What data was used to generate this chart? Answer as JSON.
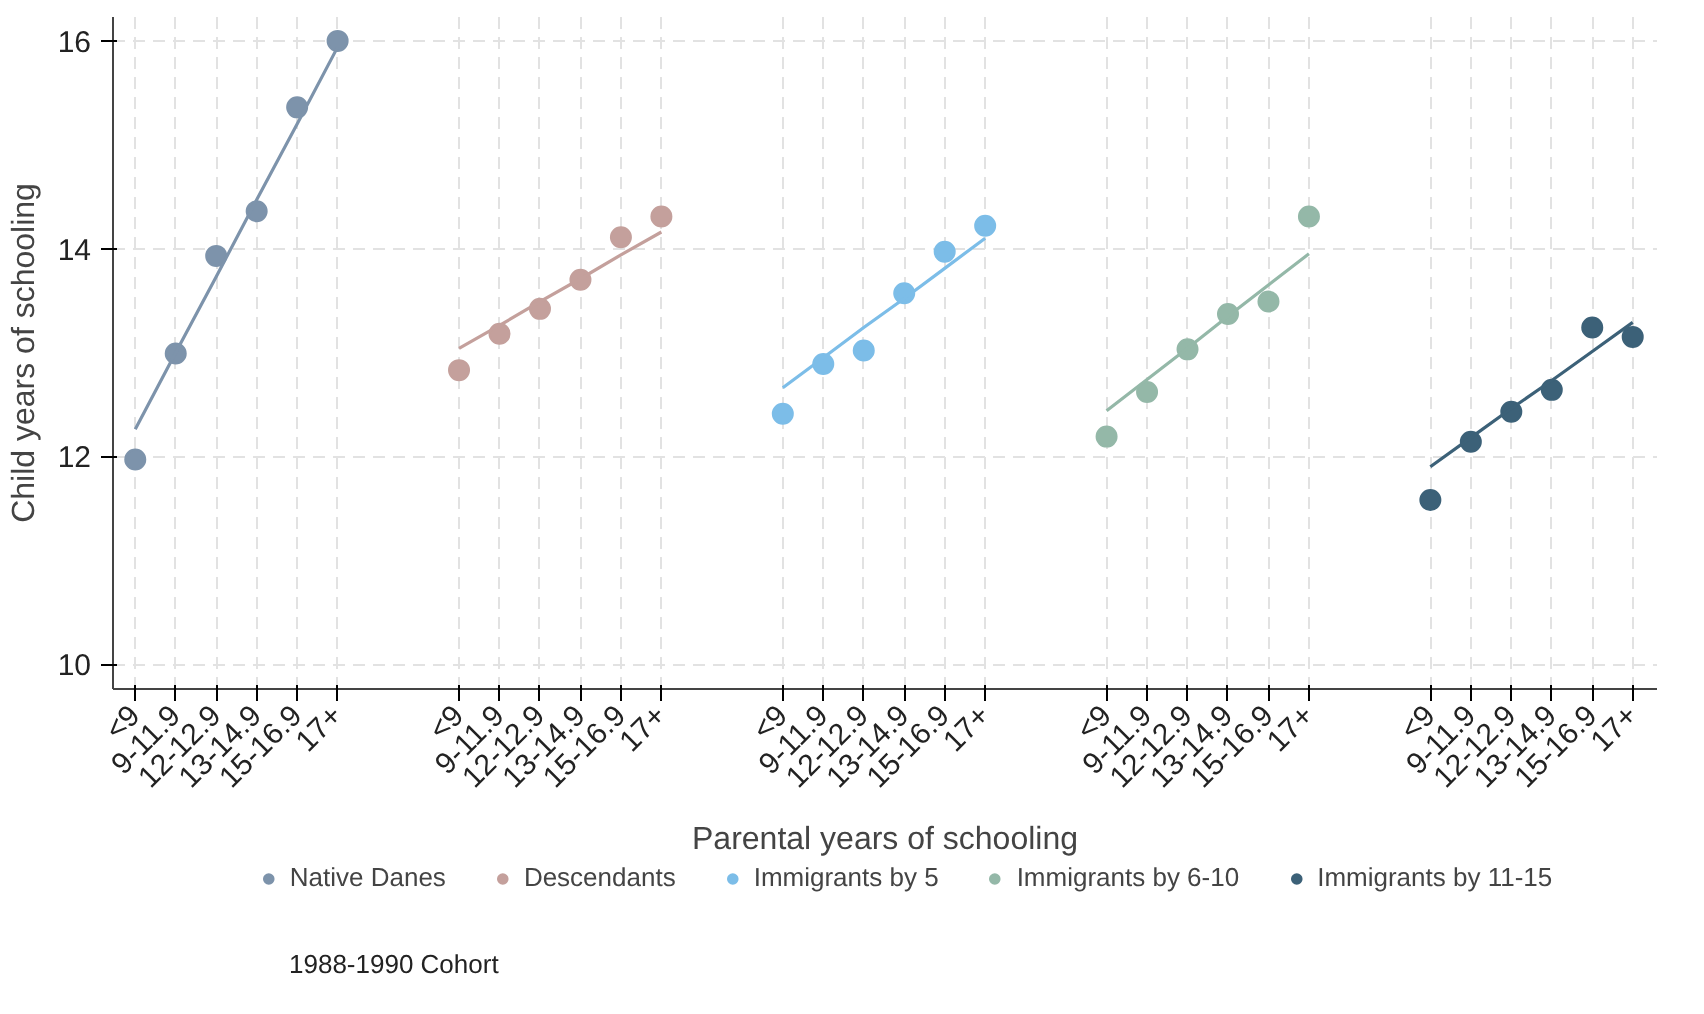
{
  "chart_data": {
    "type": "scatter",
    "xlabel": "Parental years of schooling",
    "ylabel": "Child years of schooling",
    "categories": [
      "<9",
      "9-11.9",
      "12-12.9",
      "13-14.9",
      "15-16.9",
      "17+",
      null,
      null,
      "<9",
      "9-11.9",
      "12-12.9",
      "13-14.9",
      "15-16.9",
      "17+",
      null,
      null,
      "<9",
      "9-11.9",
      "12-12.9",
      "13-14.9",
      "15-16.9",
      "17+",
      null,
      null,
      "<9",
      "9-11.9",
      "12-12.9",
      "13-14.9",
      "15-16.9",
      "17+",
      null,
      null,
      "<9",
      "9-11.9",
      "12-12.9",
      "13-14.9",
      "15-16.9",
      "17+"
    ],
    "series": [
      {
        "name": "Native Danes",
        "color": "#7d93ab",
        "values": [
          11.97,
          12.99,
          13.93,
          14.36,
          15.36,
          16.0,
          null,
          null,
          null,
          null,
          null,
          null,
          null,
          null,
          null,
          null,
          null,
          null,
          null,
          null,
          null,
          null,
          null,
          null,
          null,
          null,
          null,
          null,
          null,
          null,
          null,
          null,
          null,
          null,
          null,
          null,
          null,
          null
        ]
      },
      {
        "name": "Descendants",
        "color": "#c4a09c",
        "values": [
          null,
          null,
          null,
          null,
          null,
          null,
          null,
          null,
          12.83,
          13.18,
          13.42,
          13.7,
          14.11,
          14.31,
          null,
          null,
          null,
          null,
          null,
          null,
          null,
          null,
          null,
          null,
          null,
          null,
          null,
          null,
          null,
          null,
          null,
          null,
          null,
          null,
          null,
          null,
          null,
          null
        ]
      },
      {
        "name": "Immigrants by 5",
        "color": "#7cbde8",
        "values": [
          null,
          null,
          null,
          null,
          null,
          null,
          null,
          null,
          null,
          null,
          null,
          null,
          null,
          null,
          null,
          null,
          12.41,
          12.89,
          13.02,
          13.57,
          13.97,
          14.22,
          null,
          null,
          null,
          null,
          null,
          null,
          null,
          null,
          null,
          null,
          null,
          null,
          null,
          null,
          null,
          null
        ]
      },
      {
        "name": "Immigrants by 6-10",
        "color": "#94b8a8",
        "values": [
          null,
          null,
          null,
          null,
          null,
          null,
          null,
          null,
          null,
          null,
          null,
          null,
          null,
          null,
          null,
          null,
          null,
          null,
          null,
          null,
          null,
          null,
          null,
          null,
          12.19,
          12.62,
          13.03,
          13.37,
          13.49,
          14.31,
          null,
          null,
          null,
          null,
          null,
          null,
          null,
          null
        ]
      },
      {
        "name": "Immigrants by 11-15",
        "color": "#3c6178",
        "values": [
          null,
          null,
          null,
          null,
          null,
          null,
          null,
          null,
          null,
          null,
          null,
          null,
          null,
          null,
          null,
          null,
          null,
          null,
          null,
          null,
          null,
          null,
          null,
          null,
          null,
          null,
          null,
          null,
          null,
          null,
          null,
          null,
          11.58,
          12.14,
          12.43,
          12.64,
          13.24,
          13.15
        ]
      },
      {
        "type": "line",
        "marker": "none",
        "color": "#7d93ab",
        "values": [
          12.26,
          13.0,
          13.73,
          14.47,
          15.2,
          15.94,
          null,
          null,
          null,
          null,
          null,
          null,
          null,
          null,
          null,
          null,
          null,
          null,
          null,
          null,
          null,
          null,
          null,
          null,
          null,
          null,
          null,
          null,
          null,
          null,
          null,
          null,
          null,
          null,
          null,
          null,
          null,
          null
        ]
      },
      {
        "type": "line",
        "marker": "none",
        "color": "#c4a09c",
        "values": [
          null,
          null,
          null,
          null,
          null,
          null,
          null,
          null,
          13.04,
          13.26,
          13.49,
          13.71,
          13.94,
          14.16,
          null,
          null,
          null,
          null,
          null,
          null,
          null,
          null,
          null,
          null,
          null,
          null,
          null,
          null,
          null,
          null,
          null,
          null,
          null,
          null,
          null,
          null,
          null,
          null
        ]
      },
      {
        "type": "line",
        "marker": "none",
        "color": "#7cbde8",
        "values": [
          null,
          null,
          null,
          null,
          null,
          null,
          null,
          null,
          null,
          null,
          null,
          null,
          null,
          null,
          null,
          null,
          12.66,
          12.95,
          13.24,
          13.52,
          13.81,
          14.1,
          null,
          null,
          null,
          null,
          null,
          null,
          null,
          null,
          null,
          null,
          null,
          null,
          null,
          null,
          null,
          null
        ]
      },
      {
        "type": "line",
        "marker": "none",
        "color": "#94b8a8",
        "values": [
          null,
          null,
          null,
          null,
          null,
          null,
          null,
          null,
          null,
          null,
          null,
          null,
          null,
          null,
          null,
          null,
          null,
          null,
          null,
          null,
          null,
          null,
          null,
          null,
          12.44,
          12.74,
          13.04,
          13.35,
          13.65,
          13.95,
          null,
          null,
          null,
          null,
          null,
          null,
          null,
          null
        ]
      },
      {
        "type": "line",
        "marker": "none",
        "color": "#3c6178",
        "values": [
          null,
          null,
          null,
          null,
          null,
          null,
          null,
          null,
          null,
          null,
          null,
          null,
          null,
          null,
          null,
          null,
          null,
          null,
          null,
          null,
          null,
          null,
          null,
          null,
          null,
          null,
          null,
          null,
          null,
          null,
          null,
          null,
          11.9,
          12.18,
          12.46,
          12.73,
          13.01,
          13.29
        ]
      }
    ],
    "ylim": [
      9.76,
      16.23
    ],
    "yticks": [
      10,
      12,
      14,
      16
    ],
    "grid": true,
    "legend": "bottom",
    "marker": "circle",
    "annotations": [
      "1988-1990 Cohort"
    ]
  }
}
